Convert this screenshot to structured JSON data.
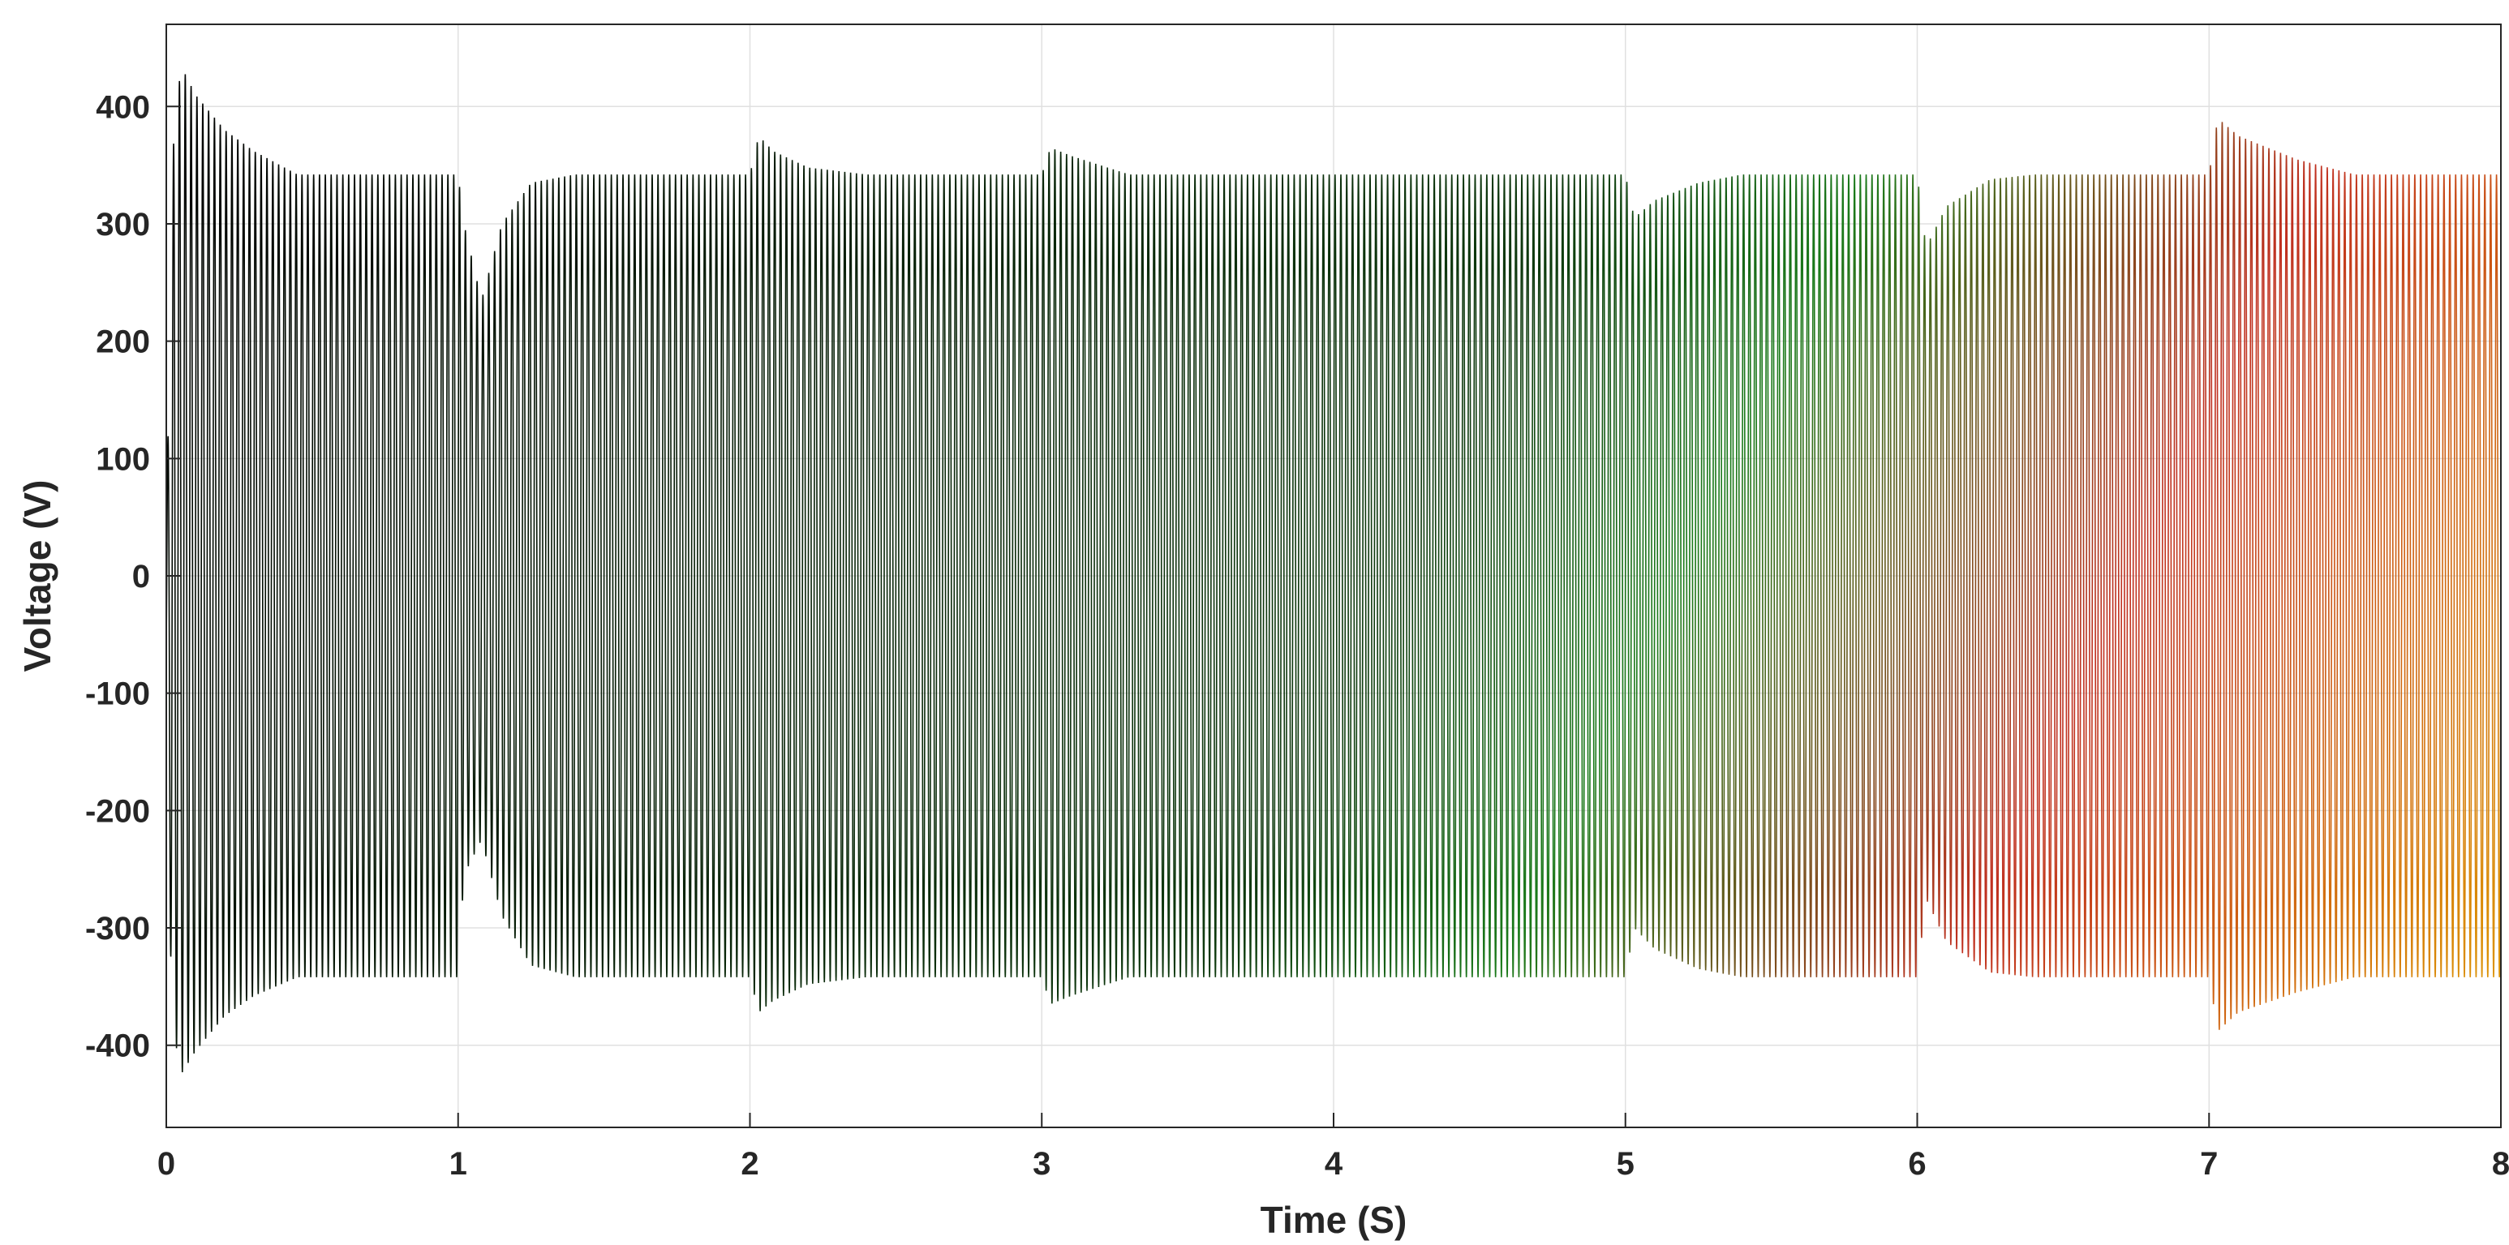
{
  "chart_data": {
    "type": "line",
    "title": "",
    "xlabel": "Time (S)",
    "ylabel": "Voltage (V)",
    "xlim": [
      0,
      8
    ],
    "ylim": [
      -470,
      470
    ],
    "x_ticks": [
      0,
      1,
      2,
      3,
      4,
      5,
      6,
      7,
      8
    ],
    "x_tick_labels": [
      "0",
      "1",
      "2",
      "3",
      "4",
      "5",
      "6",
      "7",
      "8"
    ],
    "y_ticks": [
      -400,
      -300,
      -200,
      -100,
      0,
      100,
      200,
      300,
      400
    ],
    "y_tick_labels": [
      "-400",
      "-300",
      "-200",
      "-100",
      "0",
      "100",
      "200",
      "300",
      "400"
    ],
    "grid": true,
    "legend": "none",
    "series": [
      {
        "waveform": "sinusoidal",
        "frequency_hz": 50,
        "steady_amplitude": 340,
        "color_gradient": [
          "#000000",
          "#1e9e1e",
          "#ff2020",
          "#e0a000"
        ],
        "envelope_upper": {
          "x": [
            0,
            0.02,
            0.05,
            0.1,
            0.2,
            0.3,
            0.45,
            1.0,
            1.02,
            1.08,
            1.15,
            1.25,
            1.4,
            2.0,
            2.03,
            2.08,
            2.2,
            2.4,
            3.0,
            3.03,
            3.1,
            3.3,
            5.0,
            5.03,
            5.1,
            5.25,
            5.4,
            6.0,
            6.03,
            6.1,
            6.25,
            6.4,
            7.0,
            7.03,
            7.1,
            7.3,
            7.5,
            8.0
          ],
          "y": [
            30,
            355,
            435,
            410,
            380,
            362,
            342,
            342,
            300,
            235,
            300,
            335,
            342,
            342,
            375,
            362,
            348,
            342,
            342,
            365,
            358,
            342,
            342,
            305,
            320,
            335,
            342,
            342,
            280,
            315,
            338,
            342,
            342,
            390,
            375,
            355,
            342,
            342
          ]
        },
        "envelope_lower": {
          "x": [
            0,
            0.02,
            0.05,
            0.1,
            0.2,
            0.3,
            0.45,
            1.0,
            1.02,
            1.08,
            1.15,
            1.25,
            1.4,
            2.0,
            2.03,
            2.08,
            2.2,
            2.4,
            3.0,
            3.03,
            3.1,
            3.3,
            5.0,
            5.03,
            5.1,
            5.25,
            5.4,
            6.0,
            6.03,
            6.1,
            6.25,
            6.4,
            7.0,
            7.03,
            7.1,
            7.3,
            7.5,
            8.0
          ],
          "y": [
            -150,
            -380,
            -425,
            -405,
            -375,
            -358,
            -342,
            -342,
            -255,
            -225,
            -290,
            -332,
            -342,
            -342,
            -372,
            -362,
            -348,
            -342,
            -342,
            -365,
            -358,
            -342,
            -342,
            -300,
            -318,
            -335,
            -342,
            -342,
            -275,
            -312,
            -338,
            -342,
            -342,
            -388,
            -372,
            -355,
            -342,
            -342
          ]
        }
      }
    ]
  }
}
